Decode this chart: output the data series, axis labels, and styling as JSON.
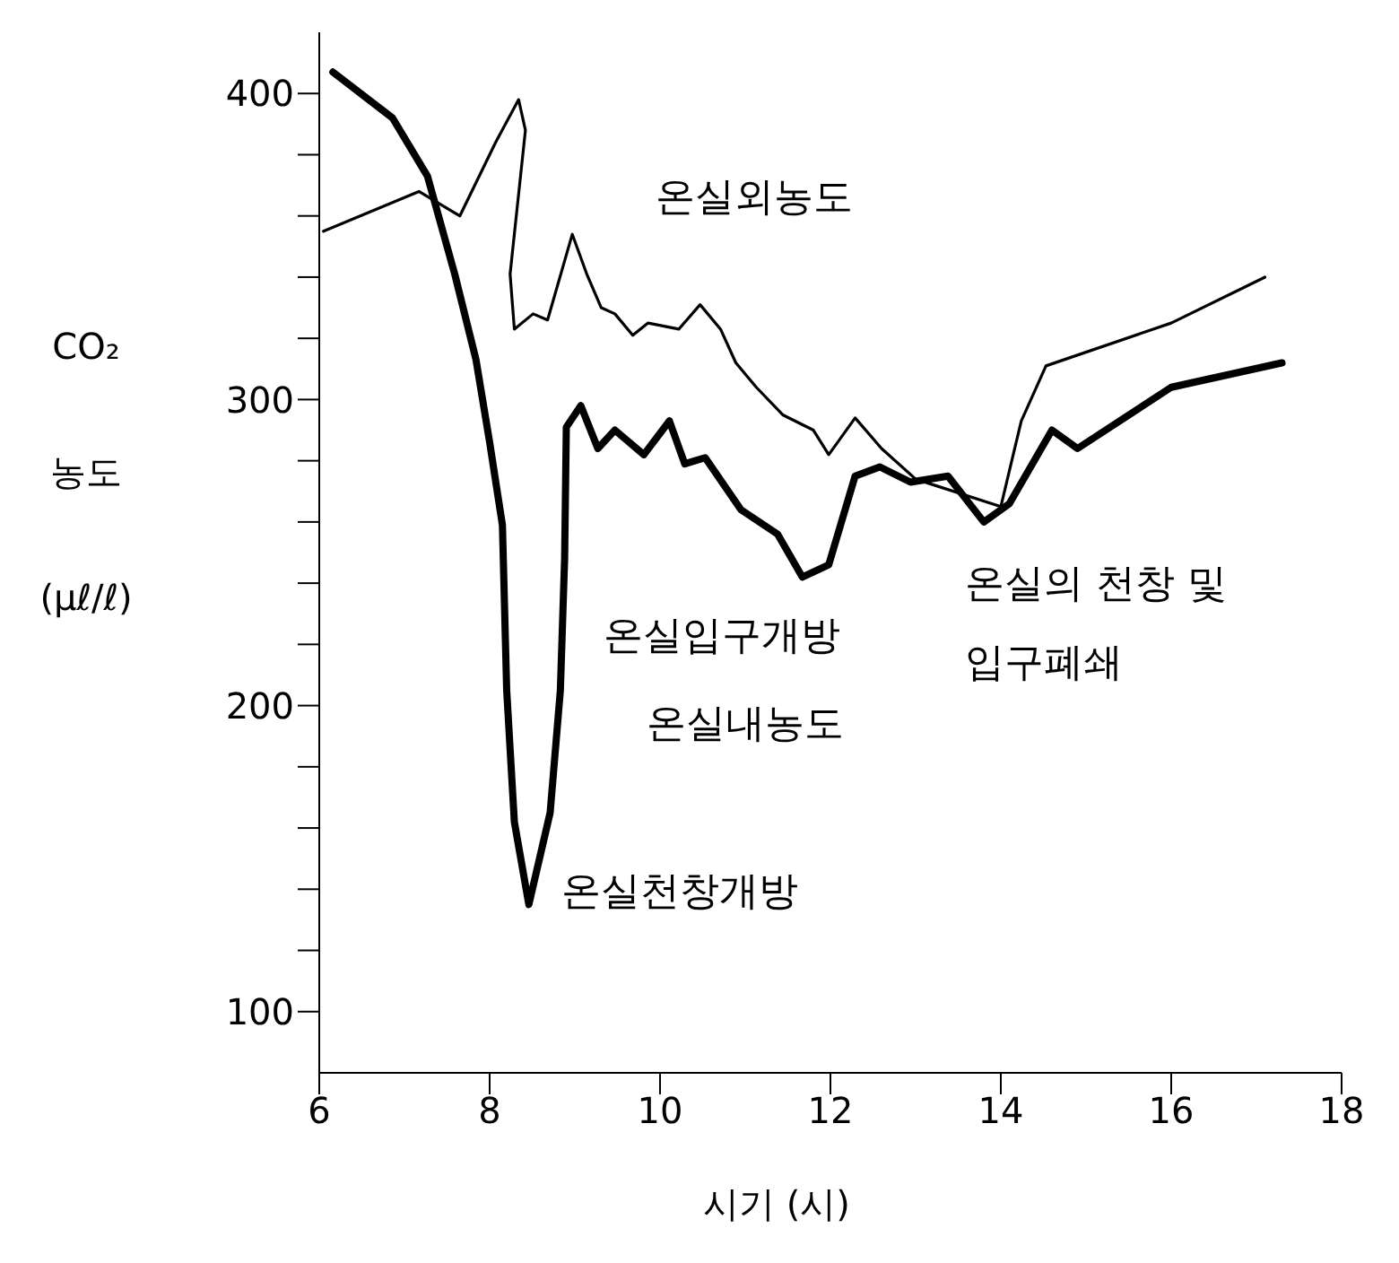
{
  "chart_data": {
    "type": "line",
    "xlabel": "시기 (시)",
    "ylabel": "CO₂ 농도 (μℓ/ℓ)",
    "xlim": [
      6,
      18
    ],
    "xticks": [
      6,
      8,
      10,
      12,
      14,
      16,
      18
    ],
    "ylim": [
      80,
      420
    ],
    "yticks": [
      100,
      {
        "value": 120,
        "label": null
      },
      {
        "value": 140,
        "label": null
      },
      {
        "value": 160,
        "label": null
      },
      {
        "value": 180,
        "label": null
      },
      200,
      {
        "value": 220,
        "label": null
      },
      {
        "value": 240,
        "label": null
      },
      {
        "value": 260,
        "label": null
      },
      {
        "value": 280,
        "label": null
      },
      300,
      {
        "value": 320,
        "label": null
      },
      {
        "value": 340,
        "label": null
      },
      {
        "value": 360,
        "label": null
      },
      {
        "value": 380,
        "label": null
      },
      400
    ],
    "marker": "none",
    "line_style": "solid",
    "series": [
      {
        "name": "온실외농도",
        "color": "#000000",
        "x": [
          6.05,
          7.17,
          7.65,
          8.07,
          8.34,
          8.42,
          8.24,
          8.29,
          8.51,
          8.68,
          8.97,
          9.14,
          9.31,
          9.47,
          9.68,
          9.86,
          10.22,
          10.47,
          10.71,
          10.89,
          11.13,
          11.44,
          11.8,
          11.98,
          12.29,
          12.6,
          13.0,
          14.0,
          14.24,
          14.53,
          16.0,
          17.1
        ],
        "values": [
          355,
          368,
          360,
          384,
          398,
          388,
          341,
          323,
          328,
          326,
          354,
          341,
          330,
          328,
          321,
          325,
          323,
          331,
          323,
          312,
          304,
          295,
          290,
          282,
          294,
          284,
          274,
          265,
          293,
          311,
          325,
          340
        ]
      },
      {
        "name": "온실내농도",
        "color": "#000000",
        "x": [
          6.16,
          6.86,
          7.27,
          7.59,
          7.84,
          8.0,
          8.15,
          8.2,
          8.29,
          8.46,
          8.71,
          8.83,
          8.88,
          8.9,
          9.07,
          9.27,
          9.47,
          9.81,
          10.11,
          10.29,
          10.53,
          10.95,
          11.38,
          11.67,
          11.98,
          12.29,
          12.58,
          12.94,
          13.38,
          13.8,
          14.1,
          14.6,
          14.9,
          16.0,
          17.3
        ],
        "values": [
          407,
          392,
          373,
          341,
          313,
          286,
          259,
          205,
          162,
          135,
          165,
          205,
          248,
          291,
          298,
          284,
          290,
          282,
          293,
          279,
          281,
          264,
          256,
          242,
          246,
          275,
          278,
          273,
          275,
          260,
          266,
          290,
          284,
          304,
          312
        ]
      }
    ],
    "annotations": [
      {
        "text": "온실천창개방",
        "x": 8.46,
        "y": 135
      },
      {
        "text": "온실입구개방",
        "x": 11.67,
        "y": 242
      },
      {
        "text": "온실의 천창 및 입구폐쇄",
        "x": 14.0,
        "y": 265
      }
    ]
  }
}
